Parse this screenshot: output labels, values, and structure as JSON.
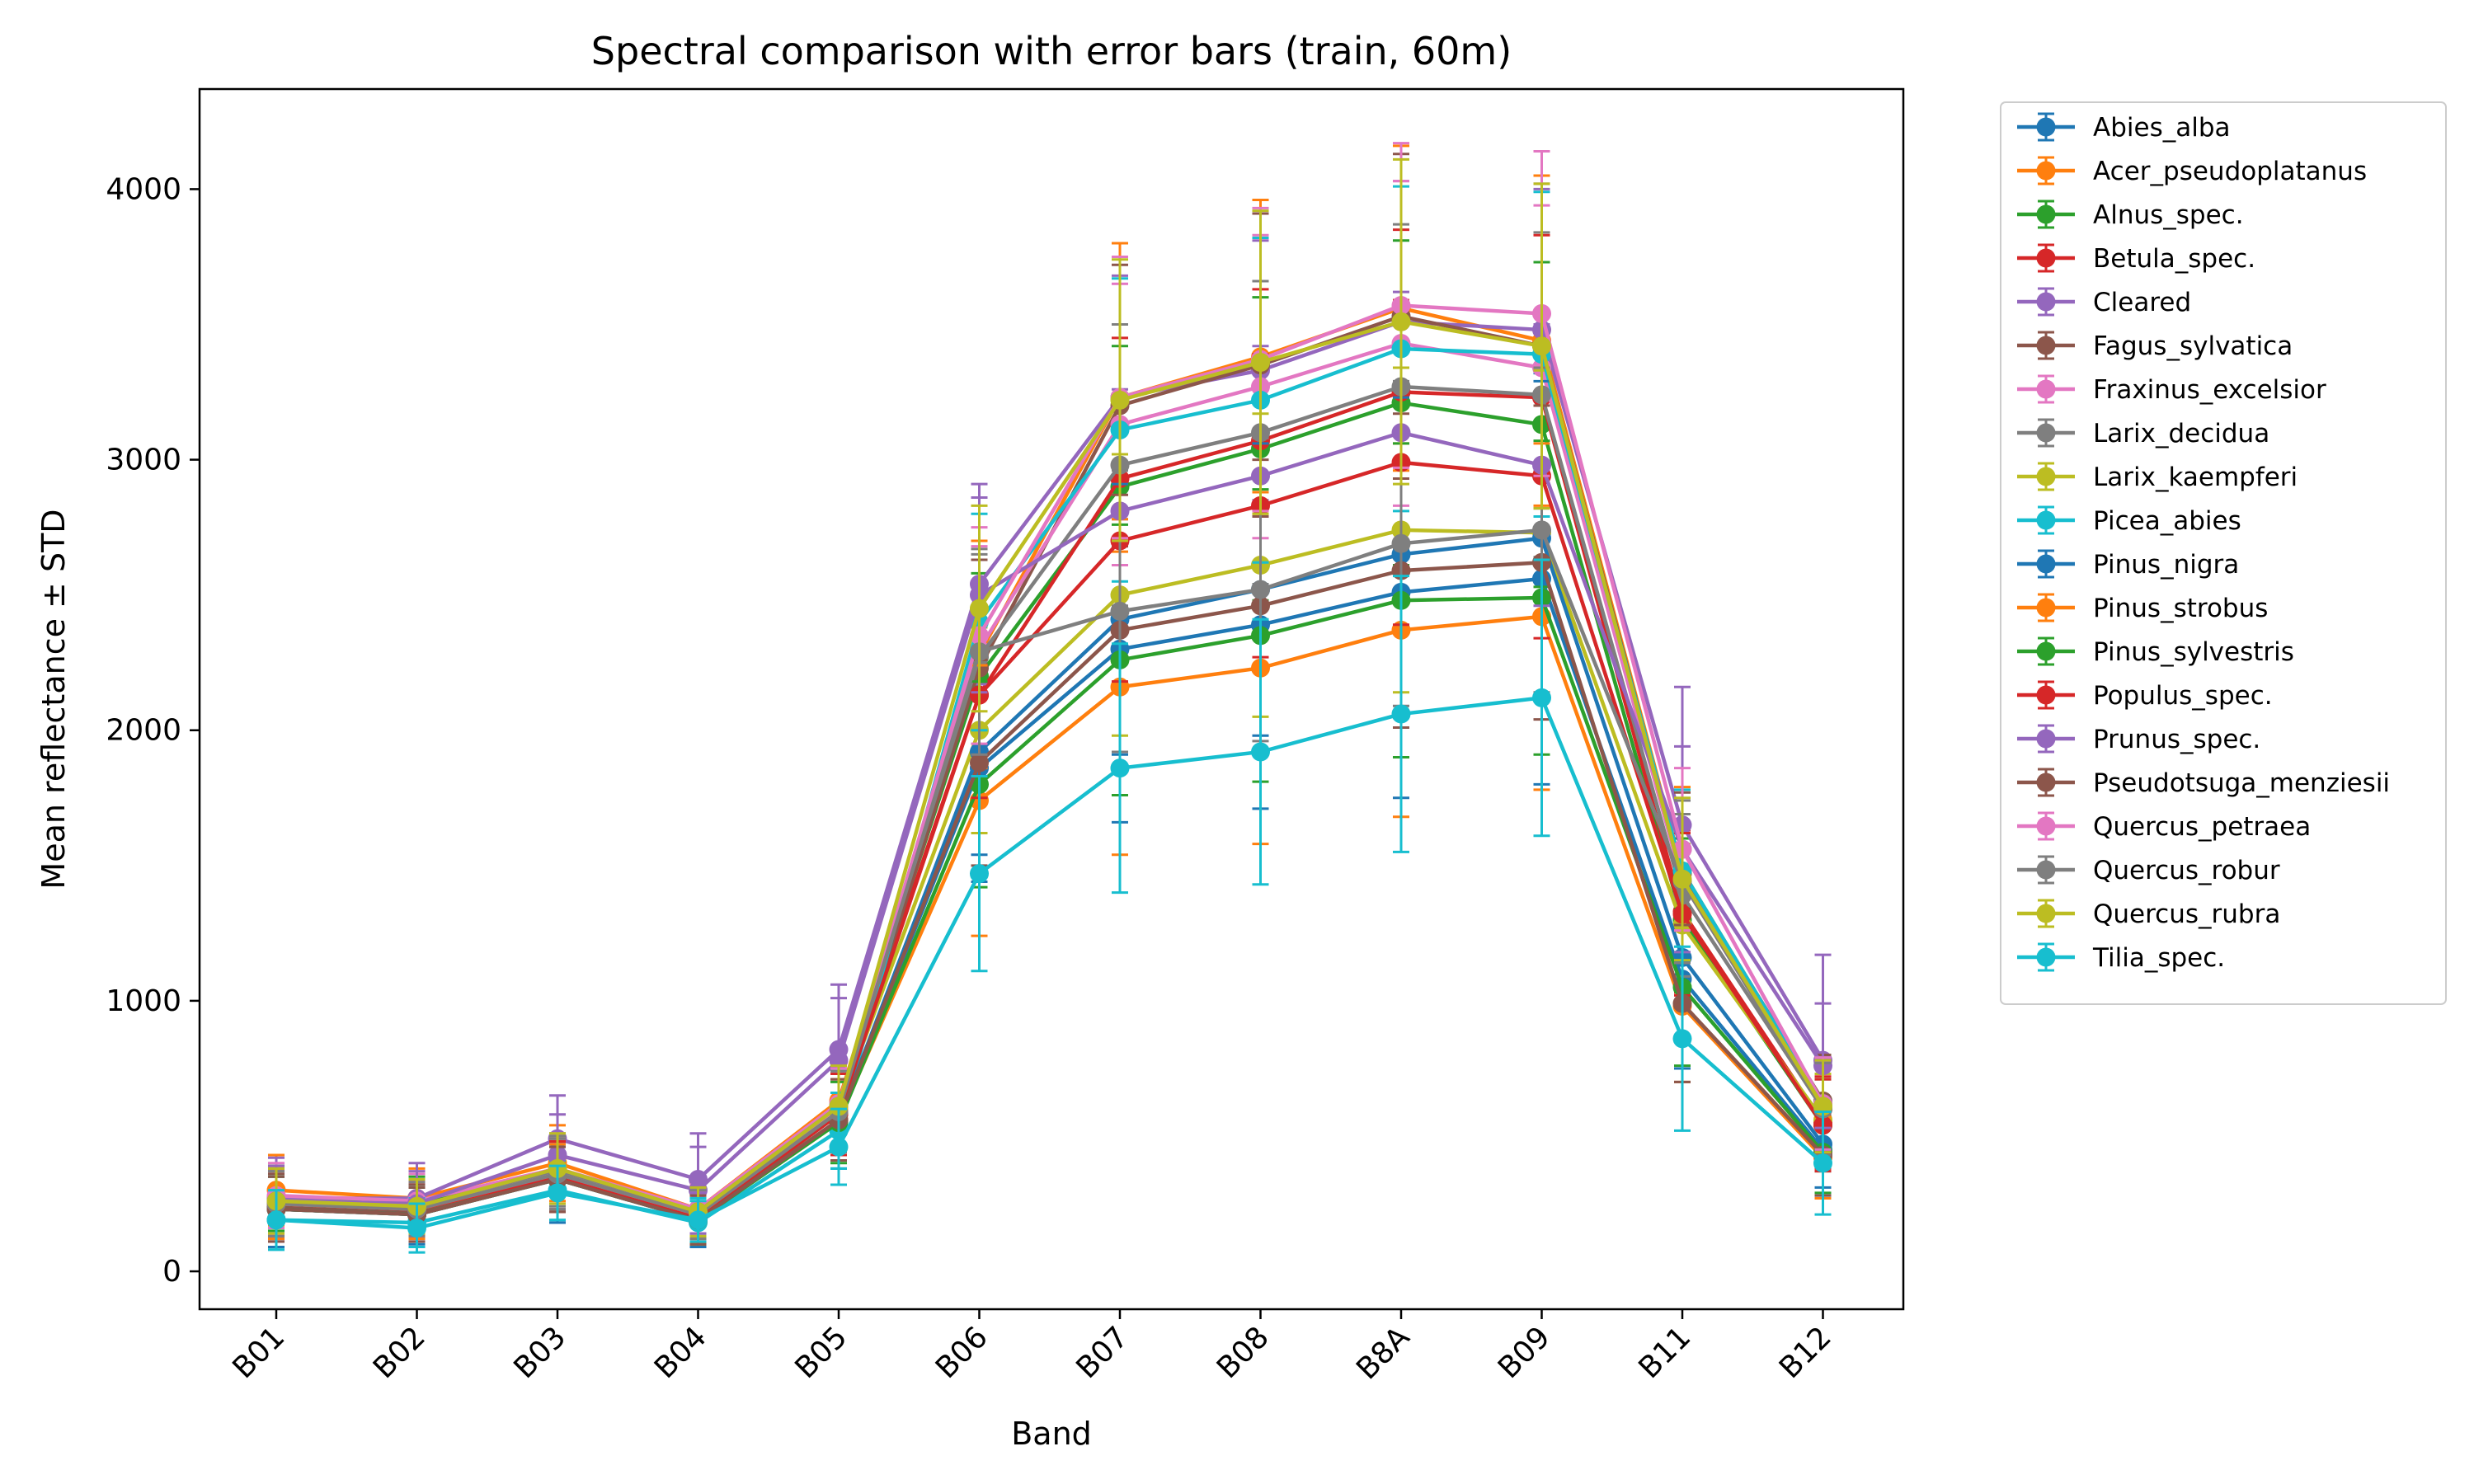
{
  "chart_data": {
    "type": "line",
    "title": "Spectral comparison with error bars (train, 60m)",
    "xlabel": "Band",
    "ylabel": "Mean reflectance ± STD",
    "categories": [
      "B01",
      "B02",
      "B03",
      "B04",
      "B05",
      "B06",
      "B07",
      "B08",
      "B8A",
      "B09",
      "B11",
      "B12"
    ],
    "ylim": [
      -140,
      4370
    ],
    "yticks": [
      0,
      1000,
      2000,
      3000,
      4000
    ],
    "grid": false,
    "legend_position": "outside-right",
    "error_bars": true,
    "series": [
      {
        "name": "Abies_alba",
        "color": "#1f77b4",
        "values": [
          230,
          210,
          340,
          190,
          560,
          1860,
          2300,
          2390,
          2510,
          2560,
          1080,
          450
        ],
        "std": [
          140,
          110,
          160,
          100,
          180,
          420,
          640,
          680,
          760,
          760,
          330,
          170
        ]
      },
      {
        "name": "Acer_pseudoplatanus",
        "color": "#ff7f0e",
        "values": [
          300,
          270,
          400,
          230,
          630,
          2280,
          3230,
          3380,
          3560,
          3440,
          1480,
          620
        ],
        "std": [
          130,
          110,
          140,
          100,
          160,
          420,
          570,
          580,
          600,
          610,
          310,
          180
        ]
      },
      {
        "name": "Alnus_spec.",
        "color": "#2ca02c",
        "values": [
          270,
          250,
          380,
          220,
          610,
          2200,
          2900,
          3040,
          3210,
          3130,
          1300,
          540
        ],
        "std": [
          120,
          100,
          130,
          90,
          150,
          380,
          520,
          560,
          600,
          600,
          300,
          170
        ]
      },
      {
        "name": "Betula_spec.",
        "color": "#d62728",
        "values": [
          260,
          240,
          360,
          210,
          600,
          2130,
          2930,
          3070,
          3250,
          3230,
          1330,
          550
        ],
        "std": [
          120,
          100,
          130,
          90,
          150,
          380,
          520,
          560,
          600,
          600,
          300,
          170
        ]
      },
      {
        "name": "Cleared",
        "color": "#9467bd",
        "values": [
          270,
          270,
          490,
          340,
          820,
          2540,
          3230,
          3330,
          3510,
          3480,
          1650,
          780
        ],
        "std": [
          150,
          130,
          160,
          170,
          240,
          370,
          450,
          480,
          520,
          520,
          510,
          390
        ]
      },
      {
        "name": "Fagus_sylvatica",
        "color": "#8c564b",
        "values": [
          240,
          220,
          350,
          200,
          580,
          2230,
          3200,
          3350,
          3530,
          3420,
          1470,
          630
        ],
        "std": [
          120,
          100,
          130,
          90,
          150,
          400,
          520,
          560,
          600,
          600,
          300,
          170
        ]
      },
      {
        "name": "Fraxinus_excelsior",
        "color": "#e377c2",
        "values": [
          280,
          260,
          380,
          230,
          620,
          2300,
          3130,
          3270,
          3430,
          3340,
          1440,
          600
        ],
        "std": [
          120,
          100,
          130,
          90,
          150,
          380,
          520,
          560,
          600,
          600,
          300,
          170
        ]
      },
      {
        "name": "Larix_decidua",
        "color": "#7f7f7f",
        "values": [
          260,
          240,
          370,
          220,
          610,
          2270,
          2980,
          3100,
          3270,
          3240,
          1390,
          600
        ],
        "std": [
          120,
          100,
          130,
          90,
          150,
          380,
          520,
          560,
          600,
          600,
          300,
          170
        ]
      },
      {
        "name": "Larix_kaempferi",
        "color": "#bcbd22",
        "values": [
          250,
          230,
          360,
          210,
          600,
          2000,
          2500,
          2610,
          2740,
          2730,
          1280,
          560
        ],
        "std": [
          120,
          100,
          130,
          90,
          150,
          380,
          520,
          560,
          600,
          600,
          300,
          170
        ]
      },
      {
        "name": "Picea_abies",
        "color": "#17becf",
        "values": [
          190,
          180,
          300,
          180,
          520,
          2400,
          3110,
          3220,
          3410,
          3390,
          1480,
          620
        ],
        "std": [
          110,
          90,
          110,
          80,
          140,
          400,
          560,
          600,
          600,
          600,
          300,
          160
        ]
      },
      {
        "name": "Pinus_nigra",
        "color": "#1f77b4",
        "values": [
          230,
          210,
          340,
          190,
          560,
          1920,
          2410,
          2520,
          2650,
          2710,
          1160,
          470
        ],
        "std": [
          120,
          100,
          120,
          90,
          150,
          380,
          500,
          540,
          580,
          580,
          300,
          160
        ]
      },
      {
        "name": "Pinus_strobus",
        "color": "#ff7f0e",
        "values": [
          250,
          230,
          350,
          190,
          560,
          1740,
          2160,
          2230,
          2370,
          2420,
          980,
          420
        ],
        "std": [
          130,
          110,
          120,
          90,
          150,
          500,
          620,
          650,
          690,
          640,
          280,
          150
        ]
      },
      {
        "name": "Pinus_sylvestris",
        "color": "#2ca02c",
        "values": [
          230,
          210,
          340,
          190,
          550,
          1800,
          2260,
          2350,
          2480,
          2490,
          1050,
          440
        ],
        "std": [
          120,
          100,
          120,
          90,
          150,
          380,
          500,
          540,
          580,
          580,
          290,
          150
        ]
      },
      {
        "name": "Populus_spec.",
        "color": "#d62728",
        "values": [
          250,
          230,
          350,
          200,
          580,
          2130,
          2700,
          2830,
          2990,
          2940,
          1320,
          540
        ],
        "std": [
          120,
          100,
          130,
          90,
          150,
          380,
          520,
          560,
          600,
          600,
          300,
          170
        ]
      },
      {
        "name": "Prunus_spec.",
        "color": "#9467bd",
        "values": [
          260,
          250,
          430,
          300,
          780,
          2500,
          2810,
          2940,
          3100,
          2980,
          1560,
          760
        ],
        "std": [
          130,
          120,
          150,
          160,
          230,
          360,
          450,
          480,
          520,
          520,
          380,
          230
        ]
      },
      {
        "name": "Pseudotsuga_menziesii",
        "color": "#8c564b",
        "values": [
          230,
          210,
          340,
          190,
          560,
          1880,
          2370,
          2460,
          2590,
          2620,
          990,
          430
        ],
        "std": [
          120,
          100,
          120,
          90,
          150,
          380,
          500,
          540,
          580,
          580,
          290,
          150
        ]
      },
      {
        "name": "Quercus_petraea",
        "color": "#e377c2",
        "values": [
          250,
          230,
          360,
          210,
          600,
          2350,
          3230,
          3370,
          3570,
          3540,
          1560,
          620
        ],
        "std": [
          120,
          100,
          130,
          90,
          150,
          400,
          520,
          560,
          600,
          600,
          300,
          170
        ]
      },
      {
        "name": "Quercus_robur",
        "color": "#7f7f7f",
        "values": [
          250,
          230,
          360,
          210,
          590,
          2290,
          2440,
          2520,
          2690,
          2740,
          1440,
          600
        ],
        "std": [
          120,
          100,
          130,
          90,
          150,
          380,
          520,
          560,
          600,
          600,
          300,
          170
        ]
      },
      {
        "name": "Quercus_rubra",
        "color": "#bcbd22",
        "values": [
          260,
          240,
          380,
          220,
          610,
          2450,
          3220,
          3360,
          3510,
          3420,
          1450,
          610
        ],
        "std": [
          120,
          100,
          130,
          90,
          150,
          380,
          520,
          560,
          600,
          600,
          300,
          170
        ]
      },
      {
        "name": "Tilia_spec.",
        "color": "#17becf",
        "values": [
          190,
          160,
          290,
          190,
          460,
          1470,
          1860,
          1920,
          2060,
          2120,
          860,
          400
        ],
        "std": [
          110,
          90,
          100,
          80,
          140,
          360,
          460,
          490,
          510,
          510,
          340,
          190
        ]
      }
    ]
  }
}
